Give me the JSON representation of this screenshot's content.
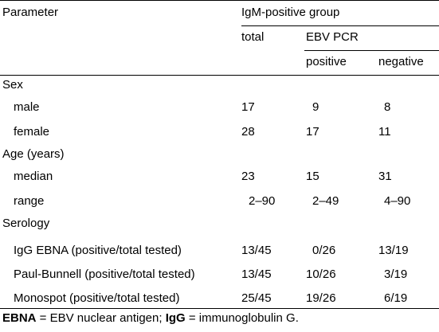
{
  "header": {
    "parameter": "Parameter",
    "group": "IgM-positive group",
    "total": "total",
    "ebv_pcr": "EBV PCR",
    "positive": "positive",
    "negative": "negative"
  },
  "sections": [
    {
      "title": "Sex",
      "rows": [
        {
          "label": "male",
          "total": "17",
          "positive": "9",
          "negative": "8"
        },
        {
          "label": "female",
          "total": "28",
          "positive": "17",
          "negative": "11"
        }
      ]
    },
    {
      "title": "Age (years)",
      "rows": [
        {
          "label": "median",
          "total": "23",
          "positive": "15",
          "negative": "31"
        },
        {
          "label": "range",
          "total": "2–90",
          "positive": "2–49",
          "negative": "4–90"
        }
      ]
    },
    {
      "title": "Serology",
      "rows": [
        {
          "label": "IgG EBNA (positive/total tested)",
          "total": "13/45",
          "positive": "0/26",
          "negative": "13/19"
        },
        {
          "label": "Paul-Bunnell (positive/total tested)",
          "total": "13/45",
          "positive": "10/26",
          "negative": "3/19"
        },
        {
          "label": "Monospot (positive/total tested)",
          "total": "25/45",
          "positive": "19/26",
          "negative": "6/19"
        }
      ]
    }
  ],
  "footnote": {
    "ebna_abbr": "EBNA",
    "ebna_def": " = EBV nuclear antigen; ",
    "igg_abbr": "IgG",
    "igg_def": " = immunoglobulin G."
  }
}
